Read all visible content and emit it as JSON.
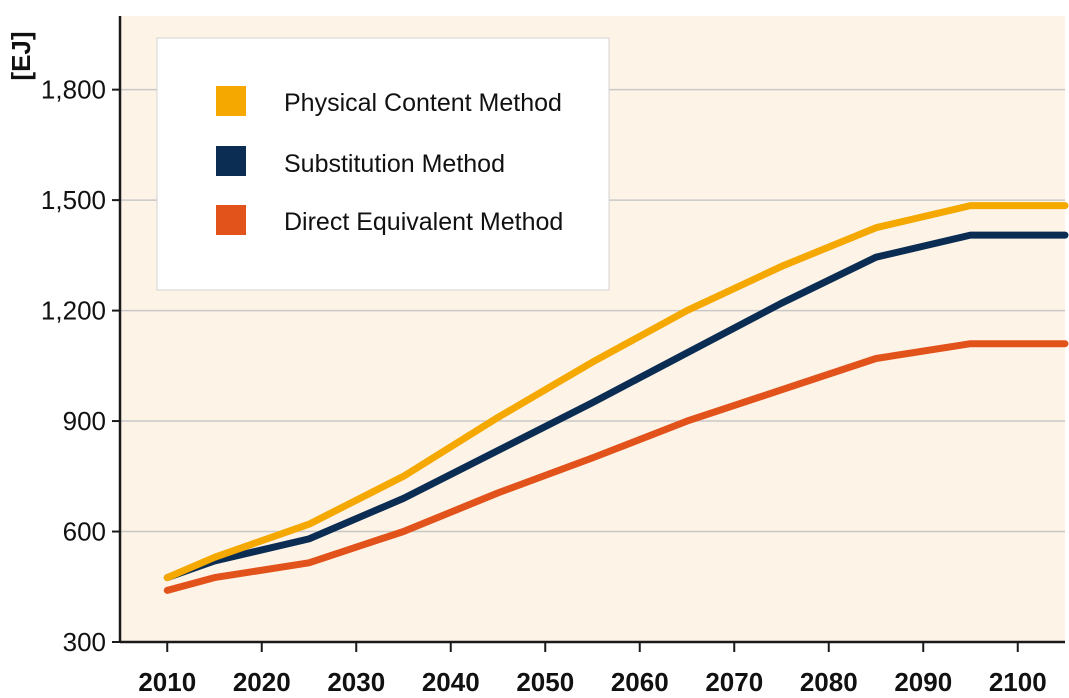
{
  "chart_data": {
    "type": "line",
    "title": "",
    "xlabel": "",
    "ylabel": "[EJ]",
    "x": [
      2010,
      2020,
      2030,
      2040,
      2050,
      2060,
      2070,
      2080,
      2090,
      2100
    ],
    "xlim": [
      2005,
      2105
    ],
    "ylim": [
      300,
      2000
    ],
    "yticks": [
      300,
      600,
      900,
      1200,
      1500,
      1800
    ],
    "ytick_labels": [
      "300",
      "600",
      "900",
      "1,200",
      "1,500",
      "1,800"
    ],
    "xtick_labels": [
      "2010",
      "2020",
      "2030",
      "2040",
      "2050",
      "2060",
      "2070",
      "2080",
      "2090",
      "2100"
    ],
    "grid": "horizontal",
    "background": "#fdf3e6",
    "legend_position": "top-left",
    "series": [
      {
        "name": "Physical Content Method",
        "color": "#f5a800",
        "x": [
          2010,
          2015,
          2025,
          2035,
          2045,
          2055,
          2065,
          2075,
          2085,
          2095,
          2105
        ],
        "values": [
          475,
          530,
          620,
          750,
          910,
          1060,
          1200,
          1320,
          1425,
          1485,
          1485
        ]
      },
      {
        "name": "Substitution Method",
        "color": "#0b2d53",
        "x": [
          2010,
          2015,
          2025,
          2035,
          2045,
          2055,
          2065,
          2075,
          2085,
          2095,
          2105
        ],
        "values": [
          475,
          520,
          580,
          690,
          820,
          950,
          1085,
          1220,
          1345,
          1405,
          1405
        ]
      },
      {
        "name": "Direct Equivalent Method",
        "color": "#e2521b",
        "x": [
          2010,
          2015,
          2025,
          2035,
          2045,
          2055,
          2065,
          2075,
          2085,
          2095,
          2105
        ],
        "values": [
          440,
          475,
          515,
          600,
          705,
          800,
          900,
          985,
          1070,
          1110,
          1110
        ]
      }
    ]
  }
}
